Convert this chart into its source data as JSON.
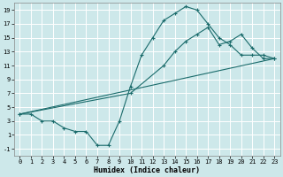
{
  "xlabel": "Humidex (Indice chaleur)",
  "xlim": [
    -0.5,
    23.5
  ],
  "ylim": [
    -2,
    20
  ],
  "xticks": [
    0,
    1,
    2,
    3,
    4,
    5,
    6,
    7,
    8,
    9,
    10,
    11,
    12,
    13,
    14,
    15,
    16,
    17,
    18,
    19,
    20,
    21,
    22,
    23
  ],
  "yticks": [
    -1,
    1,
    3,
    5,
    7,
    9,
    11,
    13,
    15,
    17,
    19
  ],
  "bg_color": "#cde8ea",
  "grid_color": "#ffffff",
  "line_color": "#1a6b6b",
  "curve1_x": [
    0,
    1,
    2,
    3,
    4,
    5,
    6,
    7,
    8,
    9,
    10,
    11,
    12,
    13,
    14,
    15,
    16,
    17,
    18,
    19,
    20,
    21,
    22,
    23
  ],
  "curve1_y": [
    4.0,
    4.0,
    3.0,
    3.0,
    2.0,
    1.5,
    1.5,
    -0.5,
    -0.5,
    3.0,
    8.0,
    12.5,
    15.0,
    17.5,
    18.5,
    19.5,
    19.0,
    17.0,
    15.0,
    14.0,
    12.5,
    12.5,
    12.5,
    12.0
  ],
  "curve2_x": [
    0,
    10,
    13,
    14,
    15,
    16,
    17,
    18,
    19,
    20,
    21,
    22,
    23
  ],
  "curve2_y": [
    4.0,
    7.0,
    11.0,
    13.0,
    14.5,
    15.5,
    16.5,
    14.0,
    14.5,
    15.5,
    13.5,
    12.0,
    12.0
  ],
  "curve3_x": [
    0,
    23
  ],
  "curve3_y": [
    4.0,
    12.0
  ],
  "tick_fontsize": 5.0,
  "xlabel_fontsize": 6.0
}
